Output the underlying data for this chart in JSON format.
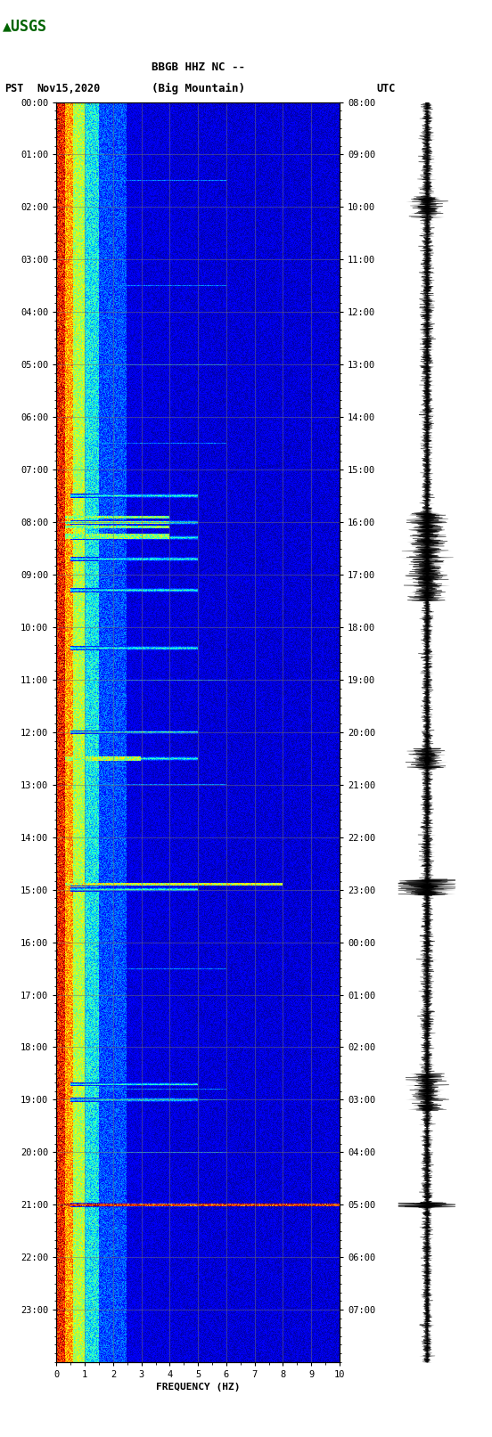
{
  "title_line1": "BBGB HHZ NC --",
  "title_line2": "(Big Mountain)",
  "label_left": "PST",
  "label_date": "Nov15,2020",
  "label_right": "UTC",
  "xlabel": "FREQUENCY (HZ)",
  "xlim": [
    0,
    10
  ],
  "xticks": [
    0,
    1,
    2,
    3,
    4,
    5,
    6,
    7,
    8,
    9,
    10
  ],
  "pst_times": [
    "00:00",
    "01:00",
    "02:00",
    "03:00",
    "04:00",
    "05:00",
    "06:00",
    "07:00",
    "08:00",
    "09:00",
    "10:00",
    "11:00",
    "12:00",
    "13:00",
    "14:00",
    "15:00",
    "16:00",
    "17:00",
    "18:00",
    "19:00",
    "20:00",
    "21:00",
    "22:00",
    "23:00"
  ],
  "utc_times": [
    "08:00",
    "09:00",
    "10:00",
    "11:00",
    "12:00",
    "13:00",
    "14:00",
    "15:00",
    "16:00",
    "17:00",
    "18:00",
    "19:00",
    "20:00",
    "21:00",
    "22:00",
    "23:00",
    "00:00",
    "01:00",
    "02:00",
    "03:00",
    "04:00",
    "05:00",
    "06:00",
    "07:00"
  ],
  "bg_color": "#ffffff",
  "spectrogram_bg": "#00006e",
  "colormap": "jet",
  "logo_color": "#006400",
  "text_color": "#000000",
  "grid_color": "#707070",
  "waveform_color": "#000000",
  "figsize": [
    5.52,
    16.13
  ],
  "dpi": 100
}
